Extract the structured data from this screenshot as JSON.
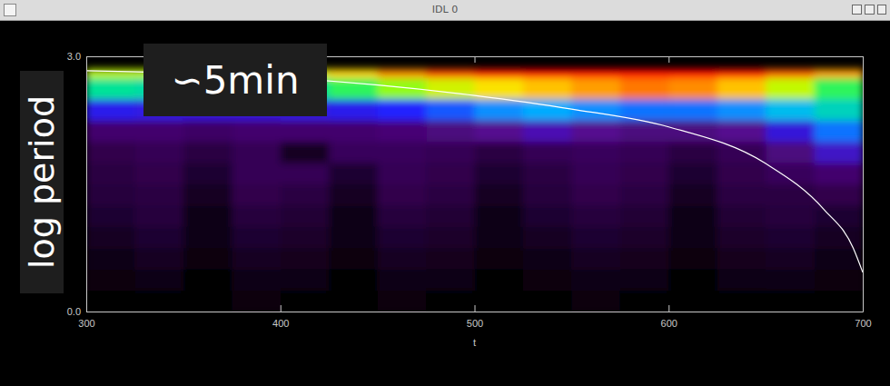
{
  "window_title": "IDL 0",
  "chart_data": {
    "type": "heatmap",
    "x_label": "t",
    "y_label": "log period",
    "annotations": [
      "∽5min"
    ],
    "xlim": [
      300,
      700
    ],
    "ylim": [
      0,
      3
    ],
    "xticks": [
      300,
      400,
      500,
      600,
      700
    ],
    "yticks": [
      {
        "value": 0,
        "label": "0.0"
      },
      {
        "value": 3,
        "label": "3.0"
      }
    ],
    "x": [
      300,
      325,
      350,
      375,
      400,
      425,
      450,
      475,
      500,
      525,
      550,
      575,
      600,
      625,
      650,
      675,
      700
    ],
    "y": [
      0,
      0.25,
      0.5,
      0.75,
      1.0,
      1.25,
      1.5,
      1.75,
      2.0,
      2.25,
      2.5,
      2.75,
      2.85
    ],
    "values": [
      [
        0.04,
        0.05,
        0.04,
        0.06,
        0.05,
        0.04,
        0.06,
        0.05,
        0.04,
        0.05,
        0.06,
        0.05,
        0.04,
        0.05,
        0.05,
        0.04
      ],
      [
        0.06,
        0.07,
        0.05,
        0.08,
        0.07,
        0.05,
        0.08,
        0.07,
        0.05,
        0.06,
        0.08,
        0.07,
        0.05,
        0.07,
        0.08,
        0.06
      ],
      [
        0.08,
        0.1,
        0.06,
        0.1,
        0.09,
        0.06,
        0.1,
        0.09,
        0.06,
        0.08,
        0.1,
        0.09,
        0.06,
        0.09,
        0.1,
        0.08
      ],
      [
        0.1,
        0.12,
        0.07,
        0.12,
        0.11,
        0.07,
        0.12,
        0.11,
        0.07,
        0.1,
        0.12,
        0.11,
        0.07,
        0.11,
        0.12,
        0.1
      ],
      [
        0.12,
        0.14,
        0.08,
        0.14,
        0.13,
        0.08,
        0.14,
        0.13,
        0.08,
        0.12,
        0.14,
        0.13,
        0.08,
        0.13,
        0.14,
        0.12
      ],
      [
        0.14,
        0.15,
        0.1,
        0.16,
        0.15,
        0.1,
        0.16,
        0.15,
        0.1,
        0.14,
        0.16,
        0.15,
        0.1,
        0.15,
        0.15,
        0.16
      ],
      [
        0.15,
        0.16,
        0.12,
        0.17,
        0.17,
        0.12,
        0.17,
        0.16,
        0.12,
        0.15,
        0.17,
        0.16,
        0.12,
        0.16,
        0.18,
        0.2
      ],
      [
        0.16,
        0.17,
        0.15,
        0.17,
        0.1,
        0.18,
        0.18,
        0.17,
        0.15,
        0.17,
        0.18,
        0.17,
        0.15,
        0.17,
        0.22,
        0.3
      ],
      [
        0.2,
        0.2,
        0.19,
        0.2,
        0.2,
        0.2,
        0.21,
        0.22,
        0.24,
        0.28,
        0.24,
        0.22,
        0.22,
        0.24,
        0.32,
        0.42
      ],
      [
        0.34,
        0.33,
        0.32,
        0.32,
        0.33,
        0.34,
        0.36,
        0.4,
        0.44,
        0.46,
        0.44,
        0.42,
        0.42,
        0.44,
        0.48,
        0.52
      ],
      [
        0.55,
        0.54,
        0.52,
        0.52,
        0.55,
        0.6,
        0.66,
        0.72,
        0.78,
        0.82,
        0.86,
        0.9,
        0.88,
        0.82,
        0.7,
        0.6
      ],
      [
        0.7,
        0.7,
        0.68,
        0.7,
        0.74,
        0.8,
        0.88,
        0.94,
        0.98,
        1.0,
        1.0,
        1.0,
        1.0,
        0.98,
        0.92,
        0.86
      ]
    ],
    "cone": {
      "x": [
        300,
        400,
        500,
        550,
        600,
        650,
        680,
        695,
        700
      ],
      "y": [
        2.83,
        2.75,
        2.54,
        2.38,
        2.17,
        1.74,
        1.2,
        0.75,
        0.46
      ]
    }
  }
}
